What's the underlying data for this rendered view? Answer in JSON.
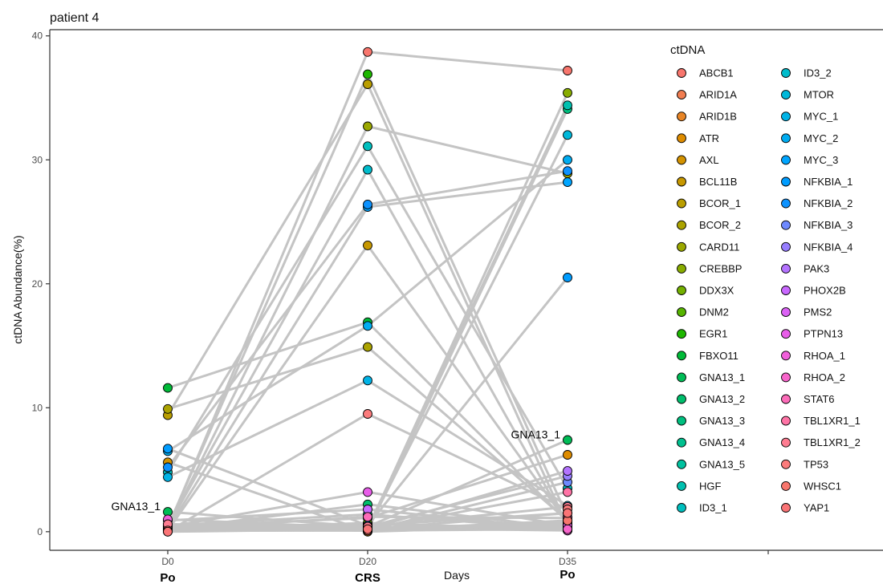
{
  "chart_data": {
    "type": "line",
    "title": "patient 4",
    "xlabel": "Days",
    "ylabel": "ctDNA Abundance(%)",
    "categories": [
      "D0",
      "D20",
      "D35"
    ],
    "phase_labels": [
      "Po",
      "CRS",
      "Po"
    ],
    "ylim": [
      -1.5,
      40.5
    ],
    "yticks": [
      0,
      10,
      20,
      30,
      40
    ],
    "grid": false,
    "legend_title": "ctDNA",
    "legend_position": "right",
    "annotations": [
      {
        "text": "GNA13_1",
        "x": "D0",
        "y": 1.6
      },
      {
        "text": "GNA13_1",
        "x": "D35",
        "y": 7.4
      }
    ],
    "series": [
      {
        "name": "ABCB1",
        "color": "#F8766D",
        "values": [
          0.3,
          38.7,
          37.2
        ]
      },
      {
        "name": "ARID1A",
        "color": "#F17D51",
        "values": [
          0.5,
          0.1,
          0.8
        ]
      },
      {
        "name": "ARID1B",
        "color": "#E88526",
        "values": [
          0.2,
          0.6,
          0.3
        ]
      },
      {
        "name": "ATR",
        "color": "#DE8C00",
        "values": [
          0.4,
          1.1,
          6.2
        ]
      },
      {
        "name": "AXL",
        "color": "#D39200",
        "values": [
          5.6,
          0.0,
          0.5
        ]
      },
      {
        "name": "BCL11B",
        "color": "#C79800",
        "values": [
          0.1,
          23.1,
          0.7
        ]
      },
      {
        "name": "BCOR_1",
        "color": "#BA9E00",
        "values": [
          9.4,
          36.1,
          0.4
        ]
      },
      {
        "name": "BCOR_2",
        "color": "#ABA300",
        "values": [
          9.9,
          14.9,
          0.9
        ]
      },
      {
        "name": "CARD11",
        "color": "#9BA800",
        "values": [
          0.3,
          32.7,
          28.9
        ]
      },
      {
        "name": "CREBBP",
        "color": "#88AC00",
        "values": [
          0.6,
          0.2,
          35.4
        ]
      },
      {
        "name": "DDX3X",
        "color": "#73B000",
        "values": [
          0.2,
          0.7,
          0.1
        ]
      },
      {
        "name": "DNM2",
        "color": "#56B400",
        "values": [
          0.1,
          0.3,
          0.6
        ]
      },
      {
        "name": "EGR1",
        "color": "#1EB700",
        "values": [
          0.4,
          36.9,
          1.2
        ]
      },
      {
        "name": "FBXO11",
        "color": "#00BA38",
        "values": [
          11.6,
          16.9,
          0.8
        ]
      },
      {
        "name": "GNA13_1",
        "color": "#00BC56",
        "values": [
          1.6,
          0.4,
          7.4
        ]
      },
      {
        "name": "GNA13_2",
        "color": "#00BE6C",
        "values": [
          0.2,
          2.2,
          0.3
        ]
      },
      {
        "name": "GNA13_3",
        "color": "#00BF7F",
        "values": [
          0.3,
          0.1,
          34.1
        ]
      },
      {
        "name": "GNA13_4",
        "color": "#00C08F",
        "values": [
          0.1,
          0.5,
          1.5
        ]
      },
      {
        "name": "GNA13_5",
        "color": "#00C19F",
        "values": [
          0.5,
          1.4,
          0.2
        ]
      },
      {
        "name": "HGF",
        "color": "#00C0AF",
        "values": [
          0.2,
          0.3,
          34.4
        ]
      },
      {
        "name": "ID3_1",
        "color": "#00BFBE",
        "values": [
          4.8,
          31.1,
          3.5
        ]
      },
      {
        "name": "ID3_2",
        "color": "#00BCCC",
        "values": [
          0.4,
          29.2,
          0.5
        ]
      },
      {
        "name": "MTOR",
        "color": "#00B8DA",
        "values": [
          0.1,
          0.2,
          32.0
        ]
      },
      {
        "name": "MYC_1",
        "color": "#00B3E6",
        "values": [
          4.4,
          12.2,
          2.1
        ]
      },
      {
        "name": "MYC_2",
        "color": "#00ACF1",
        "values": [
          6.5,
          16.6,
          30.0
        ]
      },
      {
        "name": "MYC_3",
        "color": "#00A5FF",
        "values": [
          0.2,
          26.2,
          28.2
        ]
      },
      {
        "name": "NFKBIA_1",
        "color": "#009CFF",
        "values": [
          6.7,
          0.5,
          20.5
        ]
      },
      {
        "name": "NFKBIA_2",
        "color": "#0C92FF",
        "values": [
          5.2,
          26.4,
          29.1
        ]
      },
      {
        "name": "NFKBIA_3",
        "color": "#6E89FF",
        "values": [
          0.3,
          0.1,
          4.0
        ]
      },
      {
        "name": "NFKBIA_4",
        "color": "#977EFF",
        "values": [
          0.2,
          0.4,
          4.5
        ]
      },
      {
        "name": "PAK3",
        "color": "#B473FF",
        "values": [
          0.1,
          0.2,
          4.9
        ]
      },
      {
        "name": "PHOX2B",
        "color": "#C968FF",
        "values": [
          0.9,
          1.8,
          0.2
        ]
      },
      {
        "name": "PMS2",
        "color": "#DB61F5",
        "values": [
          0.1,
          0.1,
          0.3
        ]
      },
      {
        "name": "PTPN13",
        "color": "#E85DE9",
        "values": [
          0.4,
          3.2,
          0.5
        ]
      },
      {
        "name": "RHOA_1",
        "color": "#F15FDB",
        "values": [
          1.0,
          0.3,
          0.1
        ]
      },
      {
        "name": "RHOA_2",
        "color": "#F865CB",
        "values": [
          0.1,
          0.1,
          0.2
        ]
      },
      {
        "name": "STAT6",
        "color": "#FC6CB9",
        "values": [
          0.2,
          1.2,
          1.1
        ]
      },
      {
        "name": "TBL1XR1_1",
        "color": "#FF74A6",
        "values": [
          0.3,
          0.2,
          3.2
        ]
      },
      {
        "name": "TBL1XR1_2",
        "color": "#FE7C91",
        "values": [
          0.6,
          0.4,
          2.0
        ]
      },
      {
        "name": "TP53",
        "color": "#FB7B7C",
        "values": [
          0.0,
          9.5,
          1.8
        ]
      },
      {
        "name": "WHSC1",
        "color": "#F8766D",
        "values": [
          0.1,
          0.1,
          0.9
        ]
      },
      {
        "name": "YAP1",
        "color": "#FA7476",
        "values": [
          0.0,
          0.2,
          1.5
        ]
      }
    ]
  }
}
